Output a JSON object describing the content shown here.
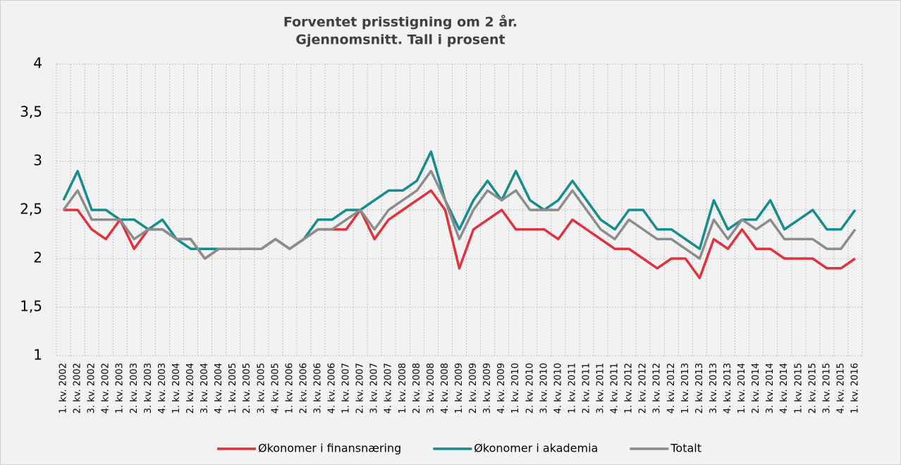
{
  "chart_data": {
    "type": "line",
    "title": [
      "Forventet prisstigning om 2 år.",
      "Gjennomsnitt. Tall i prosent"
    ],
    "categories": [
      "1. kv. 2002",
      "2. kv. 2002",
      "3. kv. 2002",
      "4. kv. 2002",
      "1. kv. 2003",
      "2. kv. 2003",
      "3. kv. 2003",
      "4. kv. 2003",
      "1. kv. 2004",
      "2. kv. 2004",
      "3. kv. 2004",
      "4. kv. 2004",
      "1. kv. 2005",
      "2. kv. 2005",
      "3. kv. 2005",
      "4. kv. 2005",
      "1. kv. 2006",
      "2. kv. 2006",
      "3. kv. 2006",
      "4. kv. 2006",
      "1. kv. 2007",
      "2. kv. 2007",
      "3. kv. 2007",
      "4. kv. 2007",
      "1. kv. 2008",
      "2. kv. 2008",
      "3. kv. 2008",
      "4. kv. 2008",
      "1. kv. 2009",
      "2. kv. 2009",
      "3. kv. 2009",
      "4. kv. 2009",
      "1. kv. 2010",
      "2. kv. 2010",
      "3. kv. 2010",
      "4. kv. 2010",
      "1. kv. 2011",
      "2. kv. 2011",
      "3. kv. 2011",
      "4. kv. 2011",
      "1. kv. 2012",
      "2. kv. 2012",
      "3. kv. 2012",
      "4. kv. 2012",
      "1. kv. 2013",
      "2. kv. 2013",
      "3. kv. 2013",
      "4. kv. 2013",
      "1. kv. 2014",
      "2. kv. 2014",
      "3. kv. 2014",
      "4. kv. 2014",
      "1. kv. 2015",
      "2. kv. 2015",
      "3. kv. 2015",
      "4. kv. 2015",
      "1. kv. 2016"
    ],
    "series": [
      {
        "name": "Økonomer i finansnæring",
        "color": "#e0323c",
        "values": [
          2.5,
          2.5,
          2.3,
          2.2,
          2.4,
          2.1,
          2.3,
          2.3,
          2.2,
          2.2,
          2.0,
          2.1,
          2.1,
          2.1,
          2.1,
          2.2,
          2.1,
          2.2,
          2.3,
          2.3,
          2.3,
          2.5,
          2.2,
          2.4,
          2.5,
          2.6,
          2.7,
          2.5,
          1.9,
          2.3,
          2.4,
          2.5,
          2.3,
          2.3,
          2.3,
          2.2,
          2.4,
          2.3,
          2.2,
          2.1,
          2.1,
          2.0,
          1.9,
          2.0,
          2.0,
          1.8,
          2.2,
          2.1,
          2.3,
          2.1,
          2.1,
          2.0,
          2.0,
          2.0,
          1.9,
          1.9,
          2.0
        ]
      },
      {
        "name": "Økonomer i akademia",
        "color": "#168c8c",
        "values": [
          2.6,
          2.9,
          2.5,
          2.5,
          2.4,
          2.4,
          2.3,
          2.4,
          2.2,
          2.1,
          2.1,
          2.1,
          2.1,
          2.1,
          2.1,
          2.2,
          2.1,
          2.2,
          2.4,
          2.4,
          2.5,
          2.5,
          2.6,
          2.7,
          2.7,
          2.8,
          3.1,
          2.6,
          2.3,
          2.6,
          2.8,
          2.6,
          2.9,
          2.6,
          2.5,
          2.6,
          2.8,
          2.6,
          2.4,
          2.3,
          2.5,
          2.5,
          2.3,
          2.3,
          2.2,
          2.1,
          2.6,
          2.3,
          2.4,
          2.4,
          2.6,
          2.3,
          2.4,
          2.5,
          2.3,
          2.3,
          2.5
        ]
      },
      {
        "name": "Totalt",
        "color": "#8c8c8c",
        "values": [
          2.5,
          2.7,
          2.4,
          2.4,
          2.4,
          2.2,
          2.3,
          2.3,
          2.2,
          2.2,
          2.0,
          2.1,
          2.1,
          2.1,
          2.1,
          2.2,
          2.1,
          2.2,
          2.3,
          2.3,
          2.4,
          2.5,
          2.3,
          2.5,
          2.6,
          2.7,
          2.9,
          2.6,
          2.2,
          2.5,
          2.7,
          2.6,
          2.7,
          2.5,
          2.5,
          2.5,
          2.7,
          2.5,
          2.3,
          2.2,
          2.4,
          2.3,
          2.2,
          2.2,
          2.1,
          2.0,
          2.4,
          2.2,
          2.4,
          2.3,
          2.4,
          2.2,
          2.2,
          2.2,
          2.1,
          2.1,
          2.3
        ]
      }
    ],
    "ylim": [
      1,
      4
    ],
    "yticks": [
      1,
      {
        "value": 1.5,
        "label": "1,5"
      },
      2,
      {
        "value": 2.5,
        "label": "2,5"
      },
      3,
      {
        "value": 3.5,
        "label": "3,5"
      },
      4
    ],
    "grid": true
  }
}
